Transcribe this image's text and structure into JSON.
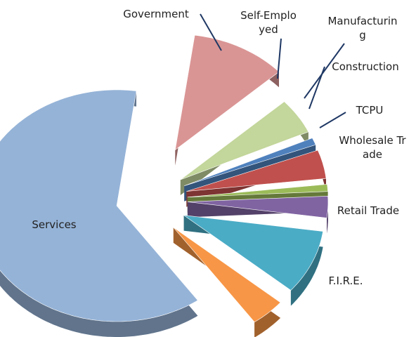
{
  "chart_data": {
    "type": "pie",
    "categories": [
      "Government",
      "Self-Employed",
      "Manufacturing",
      "Construction",
      "TCPU",
      "Wholesale Trade",
      "Retail Trade",
      "F.I.R.E.",
      "Services"
    ],
    "values": [
      11,
      5,
      1,
      4,
      1,
      3,
      9,
      4,
      62
    ],
    "colors": [
      "#d99594",
      "#c3d69b",
      "#4f81bd",
      "#c0504d",
      "#9bbb59",
      "#8064a2",
      "#4bacc6",
      "#f79646",
      "#95b3d7"
    ]
  }
}
